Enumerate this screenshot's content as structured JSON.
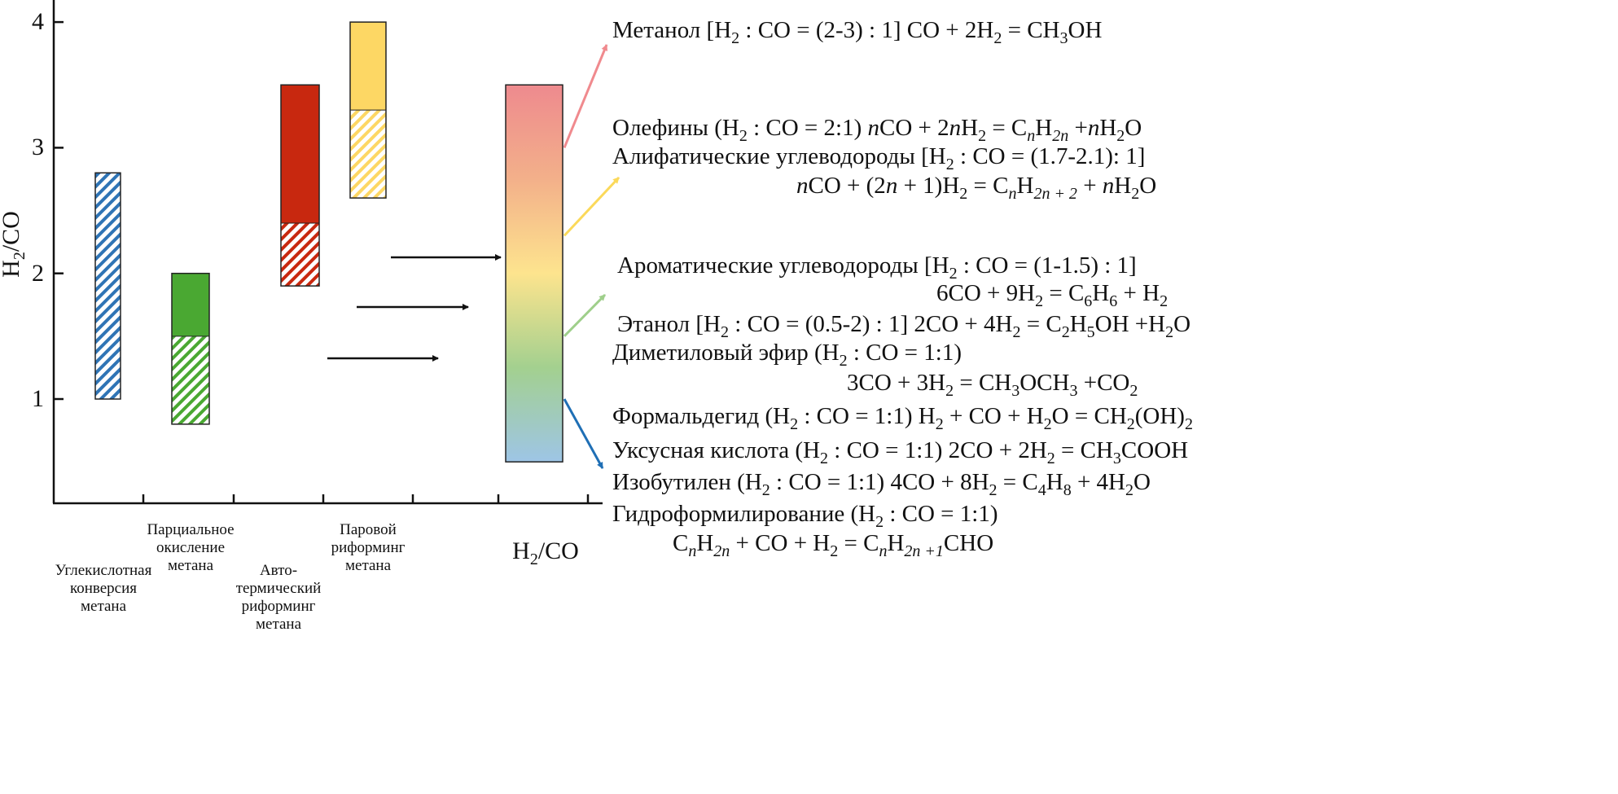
{
  "chart_data": {
    "type": "bar",
    "subtype": "range-bar",
    "ylabel": [
      "H",
      "2",
      "/CO"
    ],
    "ylim": [
      0.17,
      4.0
    ],
    "yticks": [
      "1",
      "2",
      "3",
      "4"
    ],
    "categories": [
      [
        "Углекислотная",
        "конверсия",
        "метана"
      ],
      [
        "Парциальное",
        "окисление",
        "метана"
      ],
      [
        "Авто-",
        "термический",
        "риформинг",
        "метана"
      ],
      [
        "Паровой",
        "риформинг",
        "метана"
      ]
    ],
    "bars": [
      {
        "name": "Углекислотная конверсия метана",
        "color": "#2f74b5",
        "range": [
          1.0,
          2.8
        ],
        "hatched_range": [
          1.0,
          2.8
        ],
        "solid_range": null
      },
      {
        "name": "Парциальное окисление метана",
        "color": "#4aa832",
        "range": [
          0.8,
          2.0
        ],
        "hatched_range": [
          0.8,
          1.5
        ],
        "solid_range": [
          1.5,
          2.0
        ]
      },
      {
        "name": "Автотермический риформинг метана",
        "color": "#c8280f",
        "range": [
          1.9,
          3.5
        ],
        "hatched_range": [
          1.9,
          2.4
        ],
        "solid_range": [
          2.4,
          3.5
        ]
      },
      {
        "name": "Паровой риформинг метана",
        "color": "#fdd764",
        "range": [
          2.6,
          4.0
        ],
        "hatched_range": [
          2.6,
          3.3
        ],
        "solid_range": [
          3.3,
          4.0
        ]
      }
    ],
    "gradient_bar": {
      "label": [
        "H",
        "2",
        "/CO"
      ],
      "range": [
        0.5,
        3.5
      ],
      "colors": [
        "#9ec5e6",
        "#a3d08f",
        "#fde48e",
        "#f3b08a",
        "#ee8a8e"
      ]
    },
    "product_arrows": [
      {
        "from_value": 3.0,
        "color": "#f08a8e"
      },
      {
        "from_value": 2.3,
        "color": "#fbd95a"
      },
      {
        "from_value": 1.5,
        "color": "#9fcf8b"
      },
      {
        "from_value": 1.0,
        "color": "#1f6fb5"
      }
    ],
    "products": [
      {
        "segs": [
          [
            "Метанол [H"
          ],
          [
            "2",
            "s"
          ],
          [
            " : CO = (2-3) : 1]  CO + 2H"
          ],
          [
            "2",
            "s"
          ],
          [
            " = CH"
          ],
          [
            "3",
            "s"
          ],
          [
            "OH"
          ]
        ]
      },
      {
        "segs": [
          [
            "Олефины (H"
          ],
          [
            "2",
            "s"
          ],
          [
            " : CO = 2:1) "
          ],
          [
            "n",
            "i"
          ],
          [
            "CO + 2"
          ],
          [
            "n",
            "i"
          ],
          [
            "H"
          ],
          [
            "2",
            "s"
          ],
          [
            " = C"
          ],
          [
            "n",
            "si"
          ],
          [
            "H"
          ],
          [
            "2n",
            "si"
          ],
          [
            " +"
          ],
          [
            "n",
            "i"
          ],
          [
            "H"
          ],
          [
            "2",
            "s"
          ],
          [
            "O"
          ]
        ]
      },
      {
        "segs": [
          [
            "Алифатические углеводороды [H"
          ],
          [
            "2",
            "s"
          ],
          [
            " : CO = (1.7-2.1): 1]"
          ]
        ]
      },
      {
        "segs": [
          [
            "n",
            "i"
          ],
          [
            "CO + (2"
          ],
          [
            "n",
            "i"
          ],
          [
            " + 1)H"
          ],
          [
            "2",
            "s"
          ],
          [
            " = C"
          ],
          [
            "n",
            "si"
          ],
          [
            "H"
          ],
          [
            "2n + 2",
            "si"
          ],
          [
            " + "
          ],
          [
            "n",
            "i"
          ],
          [
            "H"
          ],
          [
            "2",
            "s"
          ],
          [
            "O"
          ]
        ]
      },
      {
        "segs": [
          [
            "Ароматические углеводороды [H"
          ],
          [
            "2",
            "s"
          ],
          [
            " : CO = (1-1.5) : 1]"
          ]
        ]
      },
      {
        "segs": [
          [
            "6CO + 9H"
          ],
          [
            "2",
            "s"
          ],
          [
            " = C"
          ],
          [
            "6",
            "s"
          ],
          [
            "H"
          ],
          [
            "6",
            "s"
          ],
          [
            " + H"
          ],
          [
            "2",
            "s"
          ]
        ]
      },
      {
        "segs": [
          [
            "Этанол [H"
          ],
          [
            "2",
            "s"
          ],
          [
            " : CO = (0.5-2) : 1] 2CO + 4H"
          ],
          [
            "2",
            "s"
          ],
          [
            " = C"
          ],
          [
            "2",
            "s"
          ],
          [
            "H"
          ],
          [
            "5",
            "s"
          ],
          [
            "OH +H"
          ],
          [
            "2",
            "s"
          ],
          [
            "O"
          ]
        ]
      },
      {
        "segs": [
          [
            "Диметиловый эфир (H"
          ],
          [
            "2",
            "s"
          ],
          [
            " : CO = 1:1)"
          ]
        ]
      },
      {
        "segs": [
          [
            "3CO + 3H"
          ],
          [
            "2",
            "s"
          ],
          [
            " = CH"
          ],
          [
            "3",
            "s"
          ],
          [
            "OCH"
          ],
          [
            "3",
            "s"
          ],
          [
            " +CO"
          ],
          [
            "2",
            "s"
          ]
        ]
      },
      {
        "segs": [
          [
            "Формальдегид (H"
          ],
          [
            "2",
            "s"
          ],
          [
            " : CO = 1:1) H"
          ],
          [
            "2",
            "s"
          ],
          [
            " + CO + H"
          ],
          [
            "2",
            "s"
          ],
          [
            "O = CH"
          ],
          [
            "2",
            "s"
          ],
          [
            "(OH)"
          ],
          [
            "2",
            "s"
          ]
        ]
      },
      {
        "segs": [
          [
            "Уксусная кислота (H"
          ],
          [
            "2",
            "s"
          ],
          [
            " : CO = 1:1) 2CO + 2H"
          ],
          [
            "2",
            "s"
          ],
          [
            " = CH"
          ],
          [
            "3",
            "s"
          ],
          [
            "COOH"
          ]
        ]
      },
      {
        "segs": [
          [
            "Изобутилен (H"
          ],
          [
            "2",
            "s"
          ],
          [
            " : CO = 1:1) 4CO + 8H"
          ],
          [
            "2",
            "s"
          ],
          [
            " = C"
          ],
          [
            "4",
            "s"
          ],
          [
            "H"
          ],
          [
            "8",
            "s"
          ],
          [
            " + 4H"
          ],
          [
            "2",
            "s"
          ],
          [
            "O"
          ]
        ]
      },
      {
        "segs": [
          [
            "Гидроформилирование (H"
          ],
          [
            "2",
            "s"
          ],
          [
            " : CO = 1:1)"
          ]
        ]
      },
      {
        "segs": [
          [
            "C"
          ],
          [
            "n",
            "si"
          ],
          [
            "H"
          ],
          [
            "2n",
            "si"
          ],
          [
            " + CO + H"
          ],
          [
            "2",
            "s"
          ],
          [
            " = C"
          ],
          [
            "n",
            "si"
          ],
          [
            "H"
          ],
          [
            "2n +1",
            "si"
          ],
          [
            "CHO"
          ]
        ]
      }
    ]
  }
}
